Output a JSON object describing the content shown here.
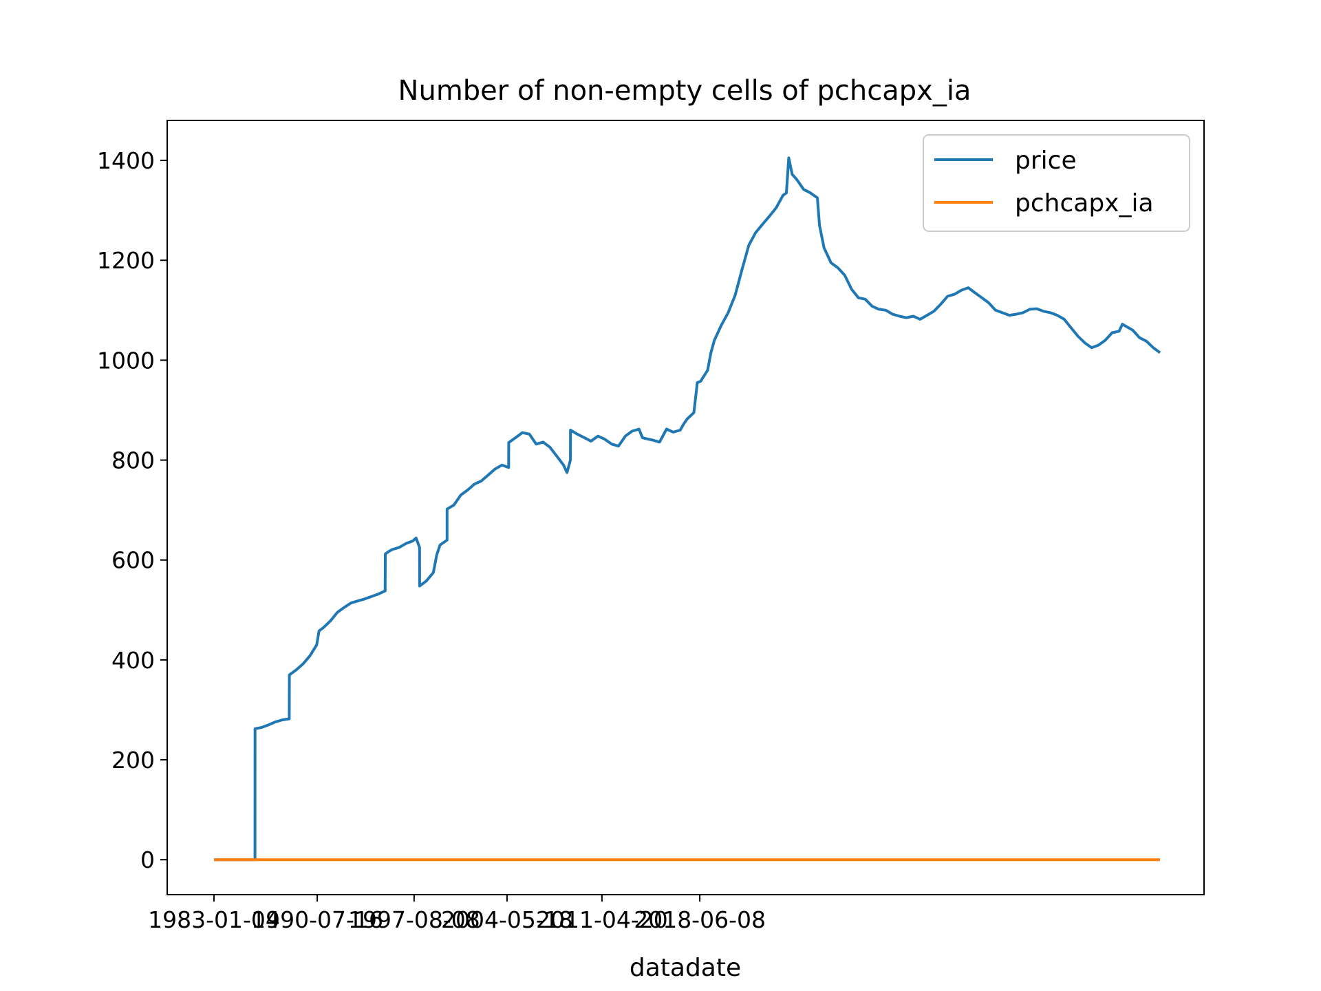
{
  "chart_data": {
    "type": "line",
    "title": "Number of non-empty cells of pchcapx_ia",
    "xlabel": "datadate",
    "ylabel": "",
    "x_tick_labels": [
      "1983-01-04",
      "1990-07-16",
      "1997-08-08",
      "2004-05-18",
      "2011-04-20",
      "2018-06-08"
    ],
    "y_ticks": [
      0,
      200,
      400,
      600,
      800,
      1000,
      1200,
      1400
    ],
    "ylim": [
      -70,
      1480
    ],
    "legend": "top-right",
    "series": [
      {
        "name": "price",
        "color": "#1f77b4",
        "points": [
          [
            "1983-01-04",
            0
          ],
          [
            "1985-12-31",
            0
          ],
          [
            "1986-01-02",
            262
          ],
          [
            "1986-07-01",
            265
          ],
          [
            "1987-01-02",
            270
          ],
          [
            "1987-07-01",
            276
          ],
          [
            "1988-01-04",
            280
          ],
          [
            "1988-07-01",
            282
          ],
          [
            "1988-07-05",
            370
          ],
          [
            "1989-01-03",
            380
          ],
          [
            "1989-07-03",
            392
          ],
          [
            "1990-01-02",
            408
          ],
          [
            "1990-07-02",
            430
          ],
          [
            "1990-09-03",
            458
          ],
          [
            "1991-01-02",
            465
          ],
          [
            "1991-07-01",
            478
          ],
          [
            "1992-01-02",
            495
          ],
          [
            "1992-07-01",
            505
          ],
          [
            "1993-01-04",
            514
          ],
          [
            "1993-07-01",
            518
          ],
          [
            "1994-01-03",
            522
          ],
          [
            "1994-07-01",
            527
          ],
          [
            "1995-01-03",
            532
          ],
          [
            "1995-06-30",
            538
          ],
          [
            "1995-07-03",
            612
          ],
          [
            "1995-10-02",
            617
          ],
          [
            "1996-01-02",
            621
          ],
          [
            "1996-07-01",
            625
          ],
          [
            "1997-01-02",
            633
          ],
          [
            "1997-07-01",
            638
          ],
          [
            "1997-10-01",
            644
          ],
          [
            "1997-12-31",
            625
          ],
          [
            "1998-01-02",
            548
          ],
          [
            "1998-07-01",
            558
          ],
          [
            "1999-01-04",
            575
          ],
          [
            "1999-04-01",
            610
          ],
          [
            "1999-07-01",
            630
          ],
          [
            "2000-01-03",
            640
          ],
          [
            "2000-01-04",
            702
          ],
          [
            "2000-07-03",
            710
          ],
          [
            "2001-01-02",
            730
          ],
          [
            "2001-07-02",
            740
          ],
          [
            "2002-01-02",
            752
          ],
          [
            "2002-07-01",
            758
          ],
          [
            "2003-01-02",
            770
          ],
          [
            "2003-07-01",
            782
          ],
          [
            "2004-01-02",
            790
          ],
          [
            "2004-07-01",
            785
          ],
          [
            "2004-07-02",
            835
          ],
          [
            "2005-01-03",
            845
          ],
          [
            "2005-07-01",
            855
          ],
          [
            "2006-01-03",
            852
          ],
          [
            "2006-07-03",
            832
          ],
          [
            "2007-01-03",
            836
          ],
          [
            "2007-07-02",
            826
          ],
          [
            "2008-01-02",
            808
          ],
          [
            "2008-07-01",
            790
          ],
          [
            "2008-10-01",
            775
          ],
          [
            "2008-12-31",
            800
          ],
          [
            "2009-01-02",
            860
          ],
          [
            "2009-07-01",
            852
          ],
          [
            "2010-01-04",
            845
          ],
          [
            "2010-07-01",
            838
          ],
          [
            "2011-01-03",
            848
          ],
          [
            "2011-07-01",
            842
          ],
          [
            "2012-01-03",
            832
          ],
          [
            "2012-07-02",
            828
          ],
          [
            "2013-01-02",
            848
          ],
          [
            "2013-07-01",
            858
          ],
          [
            "2014-01-02",
            862
          ],
          [
            "2014-04-01",
            845
          ],
          [
            "2014-07-01",
            843
          ],
          [
            "2015-01-02",
            840
          ],
          [
            "2015-07-01",
            836
          ],
          [
            "2016-01-04",
            862
          ],
          [
            "2016-07-01",
            856
          ],
          [
            "2017-01-03",
            860
          ],
          [
            "2017-04-03",
            872
          ],
          [
            "2017-07-03",
            882
          ],
          [
            "2018-01-02",
            895
          ],
          [
            "2018-04-02",
            955
          ],
          [
            "2018-07-02",
            958
          ],
          [
            "2019-01-02",
            980
          ],
          [
            "2019-04-01",
            1015
          ],
          [
            "2019-07-01",
            1040
          ],
          [
            "2020-01-02",
            1070
          ],
          [
            "2020-07-01",
            1095
          ],
          [
            "2021-01-04",
            1130
          ],
          [
            "2021-07-01",
            1180
          ],
          [
            "2022-01-03",
            1230
          ],
          [
            "2022-07-01",
            1255
          ],
          [
            "2023-01-03",
            1272
          ],
          [
            "2023-07-03",
            1288
          ],
          [
            "2024-01-02",
            1305
          ],
          [
            "2024-07-01",
            1330
          ],
          [
            "2024-10-01",
            1335
          ],
          [
            "2024-12-02",
            1405
          ],
          [
            "2025-03-03",
            1372
          ],
          [
            "2025-07-01",
            1362
          ],
          [
            "2026-01-02",
            1342
          ],
          [
            "2026-07-01",
            1335
          ],
          [
            "2027-01-04",
            1325
          ],
          [
            "2027-03-01",
            1270
          ],
          [
            "2027-07-01",
            1225
          ],
          [
            "2028-01-03",
            1195
          ],
          [
            "2028-07-03",
            1185
          ],
          [
            "2029-01-02",
            1170
          ],
          [
            "2029-07-02",
            1142
          ],
          [
            "2030-01-02",
            1125
          ],
          [
            "2030-07-01",
            1122
          ],
          [
            "2031-01-02",
            1108
          ],
          [
            "2031-07-01",
            1102
          ],
          [
            "2032-01-02",
            1100
          ],
          [
            "2032-07-01",
            1092
          ],
          [
            "2033-01-03",
            1088
          ],
          [
            "2033-07-01",
            1085
          ],
          [
            "2034-01-02",
            1088
          ],
          [
            "2034-07-03",
            1082
          ],
          [
            "2035-01-02",
            1090
          ],
          [
            "2035-07-02",
            1098
          ],
          [
            "2036-01-02",
            1112
          ],
          [
            "2036-07-01",
            1128
          ],
          [
            "2037-01-02",
            1132
          ],
          [
            "2037-07-01",
            1140
          ],
          [
            "2038-01-04",
            1145
          ],
          [
            "2038-07-01",
            1135
          ],
          [
            "2039-01-03",
            1125
          ],
          [
            "2039-07-01",
            1115
          ],
          [
            "2040-01-02",
            1100
          ],
          [
            "2040-07-02",
            1095
          ],
          [
            "2041-01-02",
            1090
          ],
          [
            "2041-07-01",
            1092
          ],
          [
            "2042-01-02",
            1095
          ],
          [
            "2042-07-01",
            1102
          ],
          [
            "2043-01-04",
            1103
          ],
          [
            "2043-07-01",
            1098
          ],
          [
            "2044-01-04",
            1095
          ],
          [
            "2044-07-01",
            1090
          ],
          [
            "2045-01-02",
            1082
          ],
          [
            "2045-07-03",
            1065
          ],
          [
            "2046-01-02",
            1048
          ],
          [
            "2046-07-02",
            1035
          ],
          [
            "2047-01-02",
            1025
          ],
          [
            "2047-07-01",
            1030
          ],
          [
            "2048-01-02",
            1040
          ],
          [
            "2048-07-01",
            1055
          ],
          [
            "2049-01-04",
            1058
          ],
          [
            "2049-04-01",
            1072
          ],
          [
            "2049-07-01",
            1068
          ],
          [
            "2050-01-03",
            1060
          ],
          [
            "2050-07-01",
            1045
          ],
          [
            "2051-01-02",
            1038
          ],
          [
            "2051-07-03",
            1025
          ],
          [
            "2051-12-29",
            1015
          ]
        ]
      },
      {
        "name": "pchcapx_ia",
        "color": "#ff7f0e",
        "points": [
          [
            "1983-01-04",
            0
          ],
          [
            "2051-12-29",
            0
          ]
        ]
      }
    ]
  }
}
